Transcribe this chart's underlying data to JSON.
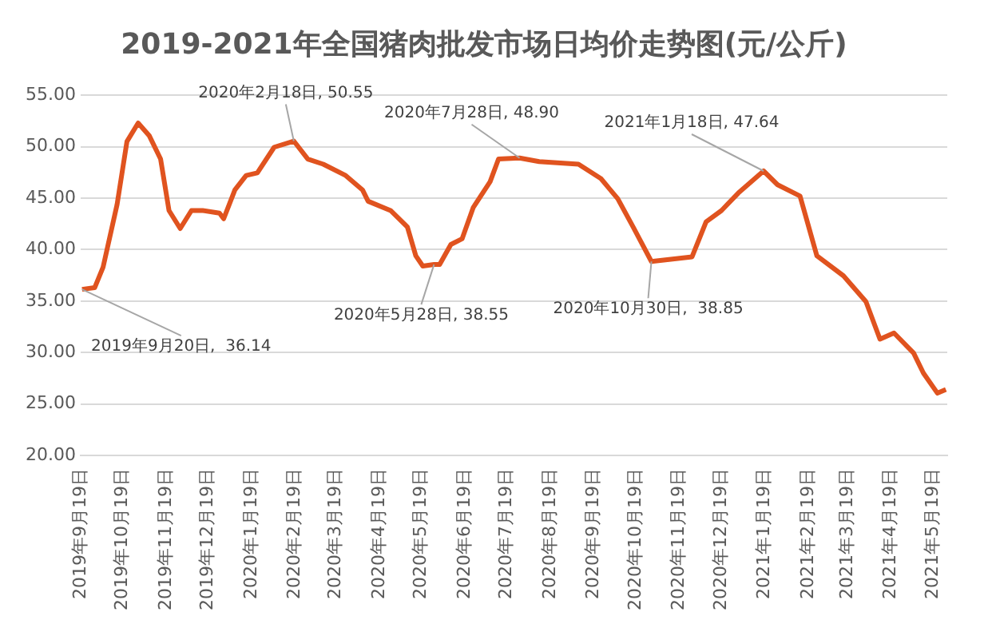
{
  "chart_data": {
    "type": "line",
    "title": "2019-2021年全国猪肉批发市场日均价走势图(元/公斤)",
    "x": [
      "2019-09-20",
      "2019-09-29",
      "2019-10-05",
      "2019-10-15",
      "2019-10-22",
      "2019-10-30",
      "2019-11-07",
      "2019-11-15",
      "2019-11-21",
      "2019-11-29",
      "2019-12-07",
      "2019-12-15",
      "2019-12-27",
      "2019-12-30",
      "2020-01-07",
      "2020-01-15",
      "2020-01-23",
      "2020-02-04",
      "2020-02-18",
      "2020-02-28",
      "2020-03-10",
      "2020-03-26",
      "2020-04-07",
      "2020-04-11",
      "2020-04-27",
      "2020-05-09",
      "2020-05-15",
      "2020-05-20",
      "2020-05-28",
      "2020-06-01",
      "2020-06-09",
      "2020-06-17",
      "2020-06-25",
      "2020-07-07",
      "2020-07-13",
      "2020-07-28",
      "2020-08-11",
      "2020-09-08",
      "2020-09-24",
      "2020-10-06",
      "2020-10-17",
      "2020-10-30",
      "2020-11-28",
      "2020-12-08",
      "2020-12-19",
      "2020-12-31",
      "2021-01-18",
      "2021-01-28",
      "2021-02-13",
      "2021-02-25",
      "2021-03-16",
      "2021-04-01",
      "2021-04-11",
      "2021-04-21",
      "2021-05-05",
      "2021-05-12",
      "2021-05-22",
      "2021-05-28"
    ],
    "series": [
      {
        "color": "#e0531f",
        "values": [
          36.14,
          36.3,
          38.3,
          44.4,
          50.5,
          52.3,
          51.05,
          48.8,
          43.8,
          42.05,
          43.8,
          43.8,
          43.55,
          43.0,
          45.8,
          47.2,
          47.45,
          49.95,
          50.55,
          48.8,
          48.3,
          47.2,
          45.8,
          44.7,
          43.8,
          42.2,
          39.4,
          38.4,
          38.55,
          38.55,
          40.5,
          41.05,
          44.1,
          46.6,
          48.8,
          48.9,
          48.55,
          48.3,
          46.9,
          44.95,
          42.2,
          38.85,
          39.3,
          42.7,
          43.8,
          45.5,
          47.64,
          46.3,
          45.2,
          39.4,
          37.45,
          34.95,
          31.3,
          31.9,
          29.95,
          28.0,
          26.05,
          26.4
        ]
      }
    ],
    "xlim": [
      "2019-09-19",
      "2021-05-29"
    ],
    "xticks": [
      {
        "value": "2019-09-19",
        "label": "2019年9月19日"
      },
      {
        "value": "2019-10-19",
        "label": "2019年10月19日"
      },
      {
        "value": "2019-11-19",
        "label": "2019年11月19日"
      },
      {
        "value": "2019-12-19",
        "label": "2019年12月19日"
      },
      {
        "value": "2020-01-19",
        "label": "2020年1月19日"
      },
      {
        "value": "2020-02-19",
        "label": "2020年2月19日"
      },
      {
        "value": "2020-03-19",
        "label": "2020年3月19日"
      },
      {
        "value": "2020-04-19",
        "label": "2020年4月19日"
      },
      {
        "value": "2020-05-19",
        "label": "2020年5月19日"
      },
      {
        "value": "2020-06-19",
        "label": "2020年6月19日"
      },
      {
        "value": "2020-07-19",
        "label": "2020年7月19日"
      },
      {
        "value": "2020-08-19",
        "label": "2020年8月19日"
      },
      {
        "value": "2020-09-19",
        "label": "2020年9月19日"
      },
      {
        "value": "2020-10-19",
        "label": "2020年10月19日"
      },
      {
        "value": "2020-11-19",
        "label": "2020年11月19日"
      },
      {
        "value": "2020-12-19",
        "label": "2020年12月19日"
      },
      {
        "value": "2021-01-19",
        "label": "2021年1月19日"
      },
      {
        "value": "2021-02-19",
        "label": "2021年2月19日"
      },
      {
        "value": "2021-03-19",
        "label": "2021年3月19日"
      },
      {
        "value": "2021-04-19",
        "label": "2021年4月19日"
      },
      {
        "value": "2021-05-19",
        "label": "2021年5月19日"
      }
    ],
    "ylim": [
      20,
      55
    ],
    "yticks": [
      {
        "value": 20,
        "label": "20.00"
      },
      {
        "value": 25,
        "label": "25.00"
      },
      {
        "value": 30,
        "label": "30.00"
      },
      {
        "value": 35,
        "label": "35.00"
      },
      {
        "value": 40,
        "label": "40.00"
      },
      {
        "value": 45,
        "label": "45.00"
      },
      {
        "value": 50,
        "label": "50.00"
      },
      {
        "value": 55,
        "label": "55.00"
      }
    ],
    "grid": "y",
    "legend": false,
    "marker": "none",
    "line_style": "solid",
    "annotations": [
      {
        "text": "2019年9月20日,  36.14",
        "x": "2019-09-20",
        "y": 36.14
      },
      {
        "text": "2020年2月18日, 50.55",
        "x": "2020-02-18",
        "y": 50.55
      },
      {
        "text": "2020年5月28日, 38.55",
        "x": "2020-05-28",
        "y": 38.55
      },
      {
        "text": "2020年7月28日, 48.90",
        "x": "2020-07-28",
        "y": 48.9
      },
      {
        "text": "2020年10月30日,  38.85",
        "x": "2020-10-30",
        "y": 38.85
      },
      {
        "text": "2021年1月18日, 47.64",
        "x": "2021-01-18",
        "y": 47.64
      }
    ]
  }
}
